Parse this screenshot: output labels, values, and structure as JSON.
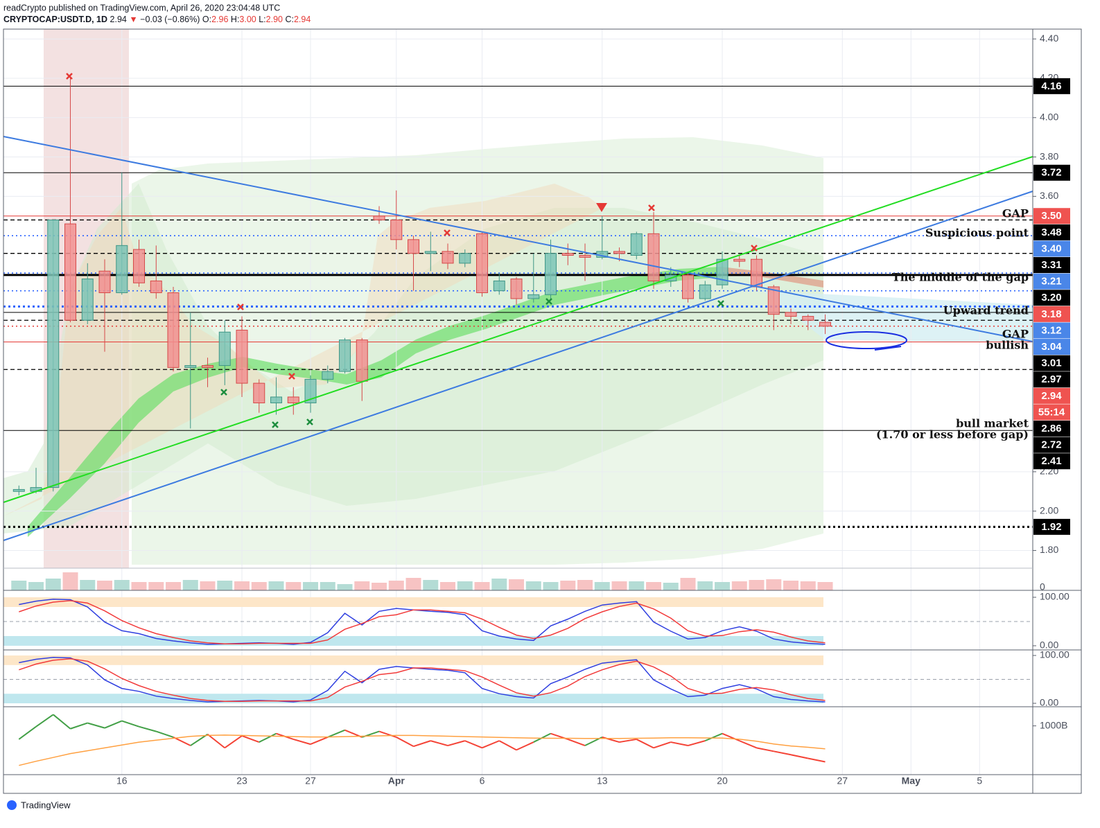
{
  "header": {
    "publisher": "readCrypto published on TradingView.com, April 26, 2020 23:04:48 UTC",
    "symbol": "CRYPTOCAP:USDT.D, 1D",
    "last": "2.94",
    "arrow": "▼",
    "change": "−0.03 (−0.86%)",
    "ohlc": [
      {
        "label": "O:",
        "value": "2.96"
      },
      {
        "label": "H:",
        "value": "3.00"
      },
      {
        "label": "L:",
        "value": "2.90"
      },
      {
        "label": "C:",
        "value": "2.94"
      }
    ],
    "logo": "TradingView"
  },
  "chart_data": {
    "type": "candlestick",
    "categories": [
      null,
      null,
      null,
      null,
      null,
      null,
      "16",
      null,
      null,
      null,
      null,
      null,
      null,
      "23",
      null,
      null,
      null,
      "27",
      null,
      null,
      null,
      null,
      "Apr",
      null,
      null,
      null,
      null,
      "6",
      null,
      null,
      null,
      null,
      null,
      null,
      "13",
      null,
      null,
      null,
      null,
      null,
      null,
      "20",
      null,
      null,
      null,
      null,
      null,
      null,
      "27",
      null,
      null,
      null,
      "May",
      null,
      null,
      null,
      "5",
      null,
      null,
      null
    ],
    "open": [
      2.1,
      2.1,
      2.12,
      3.46,
      2.97,
      3.22,
      3.11,
      3.33,
      3.17,
      3.11,
      2.73,
      2.74,
      2.74,
      2.92,
      2.65,
      2.55,
      2.58,
      2.55,
      2.67,
      2.71,
      2.87,
      3.5,
      3.48,
      3.38,
      3.31,
      3.32,
      3.26,
      3.41,
      3.12,
      3.18,
      3.08,
      3.1,
      3.31,
      3.3,
      3.29,
      3.32,
      3.3,
      3.41,
      3.17,
      3.2,
      3.08,
      3.15,
      3.28,
      3.28,
      3.14,
      3.01,
      2.99,
      2.96,
      null,
      null,
      null,
      null,
      null,
      null,
      null,
      null,
      null,
      null,
      null,
      null
    ],
    "high": [
      2.13,
      2.22,
      3.48,
      4.2,
      3.26,
      3.28,
      3.72,
      3.38,
      3.35,
      3.14,
      3.01,
      2.78,
      2.97,
      2.99,
      2.67,
      2.68,
      2.63,
      2.69,
      2.74,
      2.88,
      2.88,
      3.55,
      3.63,
      3.4,
      3.42,
      3.36,
      3.33,
      3.42,
      3.21,
      3.19,
      3.31,
      3.38,
      3.36,
      3.36,
      3.5,
      3.34,
      3.42,
      3.52,
      3.24,
      3.21,
      3.17,
      3.32,
      3.3,
      3.3,
      3.15,
      3.03,
      3.0,
      3.0,
      null,
      null,
      null,
      null,
      null,
      null,
      null,
      null,
      null,
      null,
      null,
      null
    ],
    "low": [
      2.08,
      2.09,
      2.1,
      2.96,
      2.95,
      2.81,
      3.1,
      3.14,
      3.08,
      2.71,
      2.42,
      2.63,
      2.64,
      2.58,
      2.5,
      2.49,
      2.49,
      2.5,
      2.65,
      2.7,
      2.56,
      3.46,
      3.33,
      3.12,
      3.22,
      3.23,
      3.24,
      3.09,
      3.1,
      3.05,
      3.06,
      3.07,
      3.25,
      3.17,
      3.28,
      3.27,
      3.28,
      3.13,
      3.14,
      3.06,
      3.07,
      3.13,
      3.24,
      3.12,
      2.92,
      2.95,
      2.92,
      2.9,
      null,
      null,
      null,
      null,
      null,
      null,
      null,
      null,
      null,
      null,
      null,
      null
    ],
    "close": [
      2.11,
      2.12,
      3.48,
      2.97,
      3.18,
      3.11,
      3.35,
      3.16,
      3.11,
      2.73,
      2.74,
      2.73,
      2.91,
      2.65,
      2.55,
      2.58,
      2.55,
      2.67,
      2.71,
      2.87,
      2.66,
      3.48,
      3.38,
      3.31,
      3.32,
      3.26,
      3.31,
      3.11,
      3.17,
      3.08,
      3.1,
      3.31,
      3.3,
      3.29,
      3.32,
      3.31,
      3.41,
      3.17,
      3.2,
      3.08,
      3.15,
      3.28,
      3.27,
      3.14,
      3.0,
      2.99,
      2.97,
      2.94,
      null,
      null,
      null,
      null,
      null,
      null,
      null,
      null,
      null,
      null,
      null,
      null
    ],
    "colors": {
      "up": "#7cc4b6",
      "up_edge": "#3f9686",
      "down": "#f19090",
      "down_edge": "#d64848",
      "volume_up": "#b4dcd5",
      "volume_down": "#f7c3c3"
    },
    "ylim": [
      1.71,
      4.45
    ],
    "yticks": [
      {
        "value": 4.4,
        "label": "4.40"
      },
      {
        "value": 4.2,
        "label": "4.20"
      },
      {
        "value": 4.0,
        "label": "4.00"
      },
      {
        "value": 3.8,
        "label": "3.80"
      },
      {
        "value": 3.6,
        "label": "3.60"
      },
      {
        "value": 2.2,
        "label": "2.20"
      },
      {
        "value": 2.0,
        "label": "2.00"
      },
      {
        "value": 1.8,
        "label": "1.80"
      }
    ],
    "grid": true,
    "levels": [
      {
        "value": 4.16,
        "style": "solid",
        "color": "#000000"
      },
      {
        "value": 3.72,
        "style": "solid",
        "color": "#000000"
      },
      {
        "value": 3.5,
        "style": "solid",
        "color": "#e53935"
      },
      {
        "value": 3.48,
        "style": "dashed",
        "color": "#000000"
      },
      {
        "value": 3.4,
        "style": "dotted",
        "color": "#2962ff"
      },
      {
        "value": 3.31,
        "style": "dashed",
        "color": "#000000"
      },
      {
        "value": 3.21,
        "style": "dotted",
        "color": "#2962ff"
      },
      {
        "value": 3.2,
        "style": "thick",
        "color": "#000000"
      },
      {
        "value": 3.12,
        "style": "dotted",
        "color": "#2962ff"
      },
      {
        "value": 3.04,
        "style": "dotted-thick",
        "color": "#2962ff"
      },
      {
        "value": 3.01,
        "style": "solid",
        "color": "#000000"
      },
      {
        "value": 2.97,
        "style": "dashed",
        "color": "#000000"
      },
      {
        "value": 2.94,
        "style": "dotted",
        "color": "#e53935"
      },
      {
        "value": 2.86,
        "style": "solid",
        "color": "#e53935"
      },
      {
        "value": 2.72,
        "style": "dashed",
        "color": "#000000"
      },
      {
        "value": 2.41,
        "style": "solid",
        "color": "#000000"
      },
      {
        "value": 1.92,
        "style": "dotted-thick",
        "color": "#000000"
      }
    ],
    "price_tags": [
      {
        "value": 4.16,
        "label": "4.16",
        "color": "#000000"
      },
      {
        "value": 3.72,
        "label": "3.72",
        "color": "#000000"
      },
      {
        "value": 3.5,
        "label": "3.50",
        "color": "#ef5350"
      },
      {
        "value": 3.48,
        "label": "3.48",
        "color": "#000000"
      },
      {
        "value": 3.4,
        "label": "3.40",
        "color": "#4a86e8"
      },
      {
        "value": 3.31,
        "label": "3.31",
        "color": "#000000"
      },
      {
        "value": 3.21,
        "label": "3.21",
        "color": "#4a86e8"
      },
      {
        "value": 3.2,
        "label": "3.20",
        "color": "#000000"
      },
      {
        "value": 3.18,
        "label": "3.18",
        "color": "#ef5350"
      },
      {
        "value": 3.12,
        "label": "3.12",
        "color": "#4a86e8"
      },
      {
        "value": 3.04,
        "label": "3.04",
        "color": "#4a86e8"
      },
      {
        "value": 3.01,
        "label": "3.01",
        "color": "#000000"
      },
      {
        "value": 2.97,
        "label": "2.97",
        "color": "#000000"
      },
      {
        "value": 2.94,
        "label": "2.94",
        "color": "#ef5350"
      },
      {
        "label": "55:14",
        "color": "#ef5350"
      },
      {
        "value": 2.86,
        "label": "2.86",
        "color": "#000000"
      },
      {
        "value": 2.72,
        "label": "2.72",
        "color": "#000000"
      },
      {
        "value": 2.41,
        "label": "2.41",
        "color": "#000000"
      },
      {
        "value": 1.92,
        "label": "1.92",
        "color": "#000000"
      }
    ],
    "annotations": [
      "GAP",
      "Suspicious point",
      "The middle of the gap",
      "Upward trend",
      "GAP",
      "bullish",
      "bull market",
      "(1.70 or less before gap)"
    ],
    "volume": {
      "values": [
        14,
        12,
        17,
        26,
        15,
        14,
        15,
        12,
        12,
        12,
        15,
        13,
        14,
        13,
        12,
        13,
        12,
        12,
        12,
        9,
        13,
        11,
        14,
        18,
        15,
        12,
        13,
        12,
        17,
        16,
        13,
        12,
        14,
        15,
        12,
        13,
        13,
        12,
        11,
        18,
        13,
        12,
        13,
        15,
        16,
        14,
        13,
        12,
        null,
        null,
        null,
        null,
        null,
        null,
        null,
        null,
        null,
        null,
        null,
        null
      ],
      "ylim": [
        0,
        30
      ],
      "yticks": [
        0
      ]
    },
    "panes": [
      {
        "type": "line",
        "ylim": [
          -8.6,
          114.3
        ],
        "yticks": [
          {
            "value": 100,
            "label": "100.00"
          },
          {
            "value": 0,
            "label": "0.00"
          }
        ],
        "bands": [
          {
            "from": 80,
            "to": 100,
            "color": "#fde6c8"
          },
          {
            "from": 0,
            "to": 20,
            "color": "#bfe7ee"
          }
        ],
        "midline": 50,
        "series": [
          {
            "color": "#2f3fe0",
            "values": [
              85,
              92,
              96,
              95,
              80,
              49,
              31,
              25,
              15,
              10,
              6,
              3,
              4,
              5,
              6,
              5,
              3,
              7,
              27,
              67,
              43,
              71,
              77,
              74,
              71,
              69,
              64,
              31,
              20,
              14,
              11,
              41,
              55,
              71,
              84,
              88,
              91,
              49,
              30,
              14,
              17,
              31,
              39,
              30,
              14,
              8,
              5,
              3,
              null,
              null,
              null,
              null,
              null,
              null,
              null,
              null,
              null,
              null,
              null,
              null
            ]
          },
          {
            "color": "#f23a3a",
            "values": [
              70,
              82,
              90,
              93,
              88,
              72,
              52,
              37,
              25,
              17,
              10,
              6,
              4,
              4,
              5,
              5,
              5,
              5,
              12,
              34,
              46,
              60,
              64,
              74,
              74,
              71,
              68,
              55,
              38,
              22,
              15,
              22,
              36,
              56,
              70,
              81,
              88,
              76,
              57,
              31,
              20,
              21,
              29,
              33,
              28,
              18,
              10,
              6,
              null,
              null,
              null,
              null,
              null,
              null,
              null,
              null,
              null,
              null,
              null,
              null
            ]
          }
        ]
      },
      {
        "type": "line",
        "ylim": [
          -7.2,
          111.6
        ],
        "yticks": [
          {
            "value": 100,
            "label": "100.00"
          },
          {
            "value": 0,
            "label": "0.00"
          }
        ],
        "bands": [
          {
            "from": 80,
            "to": 100,
            "color": "#fde6c8"
          },
          {
            "from": 0,
            "to": 20,
            "color": "#bfe7ee"
          }
        ],
        "midline": 50,
        "series": [
          {
            "color": "#2f3fe0",
            "values": [
              85,
              92,
              96,
              95,
              80,
              49,
              31,
              25,
              15,
              10,
              6,
              3,
              4,
              5,
              6,
              5,
              3,
              7,
              27,
              67,
              43,
              71,
              77,
              74,
              71,
              69,
              64,
              31,
              20,
              14,
              11,
              41,
              55,
              71,
              84,
              88,
              91,
              49,
              30,
              14,
              17,
              31,
              39,
              30,
              14,
              8,
              5,
              3,
              null,
              null,
              null,
              null,
              null,
              null,
              null,
              null,
              null,
              null,
              null,
              null
            ]
          },
          {
            "color": "#f23a3a",
            "values": [
              70,
              82,
              90,
              93,
              88,
              72,
              52,
              37,
              25,
              17,
              10,
              6,
              4,
              4,
              5,
              5,
              5,
              5,
              12,
              34,
              46,
              60,
              64,
              74,
              74,
              71,
              68,
              55,
              38,
              22,
              15,
              22,
              36,
              56,
              70,
              81,
              88,
              76,
              57,
              31,
              20,
              21,
              29,
              33,
              28,
              18,
              10,
              6,
              null,
              null,
              null,
              null,
              null,
              null,
              null,
              null,
              null,
              null,
              null,
              null
            ]
          }
        ]
      },
      {
        "type": "line",
        "ylim": [
          745,
          1100
        ],
        "yticks": [
          {
            "value": 1000,
            "label": "1000B"
          }
        ],
        "series": [
          {
            "color": "#43a047",
            "below_color": "#f44336",
            "values": [
              930,
              996,
              1059,
              985,
              1015,
              989,
              1026,
              996,
              971,
              941,
              897,
              956,
              885,
              948,
              915,
              960,
              930,
              904,
              941,
              978,
              941,
              971,
              941,
              893,
              922,
              897,
              922,
              885,
              922,
              874,
              915,
              960,
              930,
              897,
              941,
              915,
              930,
              885,
              915,
              897,
              922,
              960,
              922,
              885,
              867,
              849,
              830,
              812,
              null,
              null,
              null,
              null,
              null,
              null,
              null,
              null,
              null,
              null,
              null,
              null
            ]
          },
          {
            "color": "#ffa040",
            "values": [
              793,
              815,
              835,
              855,
              870,
              885,
              900,
              915,
              925,
              935,
              945,
              950,
              952,
              950,
              948,
              946,
              944,
              942,
              942,
              944,
              946,
              948,
              950,
              950,
              948,
              946,
              944,
              942,
              940,
              938,
              936,
              935,
              935,
              934,
              934,
              934,
              935,
              936,
              938,
              938,
              937,
              936,
              930,
              920,
              905,
              895,
              888,
              880,
              null,
              null,
              null,
              null,
              null,
              null,
              null,
              null,
              null,
              null,
              null,
              null
            ]
          }
        ]
      }
    ]
  }
}
